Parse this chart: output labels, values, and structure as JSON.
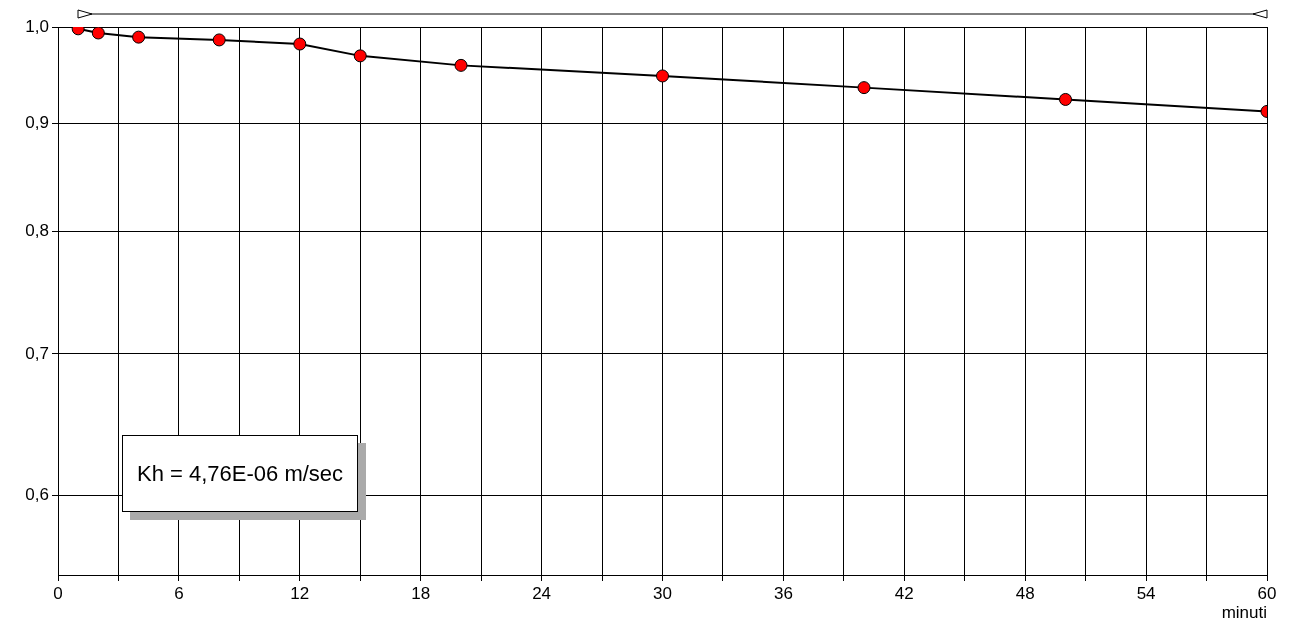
{
  "chart_data": {
    "type": "line",
    "xlabel": "minuti",
    "x": [
      1,
      2,
      4,
      8,
      12,
      15,
      20,
      30,
      40,
      50,
      60
    ],
    "series": [
      {
        "color": "#ff0000",
        "values": [
          0.998,
          0.9935,
          0.989,
          0.986,
          0.9816,
          0.969,
          0.959,
          0.948,
          0.936,
          0.924,
          0.912
        ]
      }
    ],
    "xlim": [
      0,
      60
    ],
    "xticks": [
      0,
      {
        "value": 3,
        "label": null
      },
      6,
      {
        "value": 9,
        "label": null
      },
      12,
      {
        "value": 15,
        "label": null
      },
      18,
      {
        "value": 21,
        "label": null
      },
      24,
      {
        "value": 27,
        "label": null
      },
      30,
      {
        "value": 33,
        "label": null
      },
      36,
      {
        "value": 39,
        "label": null
      },
      42,
      {
        "value": 45,
        "label": null
      },
      48,
      {
        "value": 51,
        "label": null
      },
      54,
      {
        "value": 57,
        "label": null
      },
      60
    ],
    "ylim": [
      0.55,
      1.0
    ],
    "yticks": [
      {
        "value": 0.6,
        "label": "0,6"
      },
      {
        "value": 0.7,
        "label": "0,7"
      },
      {
        "value": 0.8,
        "label": "0,8"
      },
      {
        "value": 0.9,
        "label": "0,9"
      },
      {
        "value": 1.0,
        "label": "1,0"
      }
    ],
    "log": "y",
    "grid": true,
    "marker": "circle",
    "line_style": "solid",
    "legend": false,
    "annotations": [
      "Kh = 4,76E-06 m/sec"
    ]
  }
}
